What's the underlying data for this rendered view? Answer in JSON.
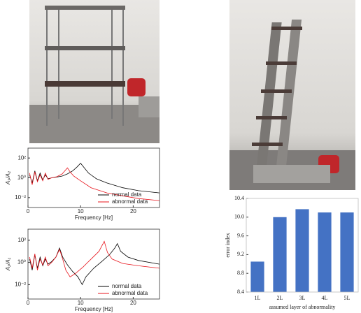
{
  "chart_data": [
    {
      "type": "line",
      "ylabel": "A₃/A₂",
      "xlabel": "Frequency [Hz]",
      "xlim": [
        0,
        25
      ],
      "xticks": [
        0,
        10,
        20
      ],
      "ylim": [
        0.001,
        1000
      ],
      "yscale": "log",
      "yticks": [
        {
          "value": 0.01,
          "label": "10⁻²"
        },
        {
          "value": 1,
          "label": "10⁰"
        },
        {
          "value": 100,
          "label": "10²"
        }
      ],
      "legend": "lower right",
      "series": [
        {
          "name": "normal data",
          "color": "#000000",
          "x": [
            0.3,
            0.8,
            1.3,
            1.8,
            2.3,
            2.8,
            3.3,
            3.8,
            4.5,
            5.5,
            6.5,
            7.5,
            8.5,
            9.3,
            10,
            10.6,
            11.5,
            13,
            15,
            18,
            21,
            25
          ],
          "values": [
            2,
            0.3,
            5,
            0.5,
            3,
            0.6,
            2,
            0.8,
            1,
            1.2,
            1.5,
            2.5,
            5,
            12,
            30,
            12,
            3,
            0.8,
            0.3,
            0.1,
            0.05,
            0.03
          ]
        },
        {
          "name": "abnormal data",
          "color": "#e8141c",
          "x": [
            0.3,
            0.8,
            1.3,
            1.8,
            2.3,
            2.8,
            3.3,
            3.8,
            4.5,
            5.5,
            6.5,
            7,
            7.5,
            8,
            8.7,
            10,
            12,
            15,
            18,
            21,
            25
          ],
          "values": [
            3,
            0.2,
            4,
            0.4,
            2,
            0.5,
            3,
            0.7,
            1,
            1.3,
            2.5,
            5,
            10,
            4,
            1.5,
            0.5,
            0.1,
            0.03,
            0.015,
            0.008,
            0.005
          ]
        }
      ]
    },
    {
      "type": "line",
      "ylabel": "A₂/A₁",
      "xlabel": "Frequency [Hz]",
      "xlim": [
        0,
        25
      ],
      "xticks": [
        0,
        10,
        20
      ],
      "ylim": [
        0.0005,
        1000
      ],
      "yscale": "log",
      "yticks": [
        {
          "value": 0.01,
          "label": "10⁻²"
        },
        {
          "value": 1,
          "label": "10⁰"
        },
        {
          "value": 100,
          "label": "10²"
        }
      ],
      "legend": "lower right",
      "series": [
        {
          "name": "normal data",
          "color": "#000000",
          "x": [
            0.3,
            0.8,
            1.3,
            1.8,
            2.3,
            2.8,
            3.3,
            3.8,
            4.5,
            5.3,
            6,
            6.6,
            7.5,
            8.5,
            9.5,
            10.3,
            11,
            12.5,
            14,
            15.5,
            16.5,
            17,
            17.6,
            19,
            21,
            25
          ],
          "values": [
            2,
            0.2,
            5,
            0.3,
            3,
            0.5,
            2,
            0.7,
            1.2,
            3,
            20,
            3,
            0.6,
            0.15,
            0.05,
            0.01,
            0.05,
            0.3,
            1.2,
            5,
            20,
            50,
            10,
            3,
            1.5,
            0.7
          ]
        },
        {
          "name": "abnormal data",
          "color": "#e8141c",
          "x": [
            0.3,
            0.8,
            1.3,
            1.8,
            2.3,
            2.8,
            3.3,
            3.8,
            4.5,
            5.3,
            6,
            6.6,
            7.2,
            8,
            9,
            10.5,
            12,
            13.5,
            14.5,
            15.1,
            16,
            18,
            21,
            25
          ],
          "values": [
            3,
            0.3,
            6,
            0.2,
            2,
            0.6,
            3,
            0.5,
            1,
            3,
            15,
            2,
            0.2,
            0.05,
            0.1,
            0.4,
            2,
            10,
            80,
            8,
            2,
            0.8,
            0.5,
            0.3
          ]
        }
      ]
    },
    {
      "type": "bar",
      "ylabel": "error index",
      "xlabel": "assumed layer of abnormality",
      "categories": [
        "1L",
        "2L",
        "3L",
        "4L",
        "5L"
      ],
      "values": [
        9.05,
        10.0,
        10.17,
        10.1,
        10.1
      ],
      "color": "#4472c4",
      "ylim": [
        8.4,
        10.4
      ],
      "yticks": [
        8.4,
        8.8,
        9.2,
        9.6,
        {
          "value": 10.0,
          "label": "10.0"
        },
        10.4
      ]
    }
  ]
}
